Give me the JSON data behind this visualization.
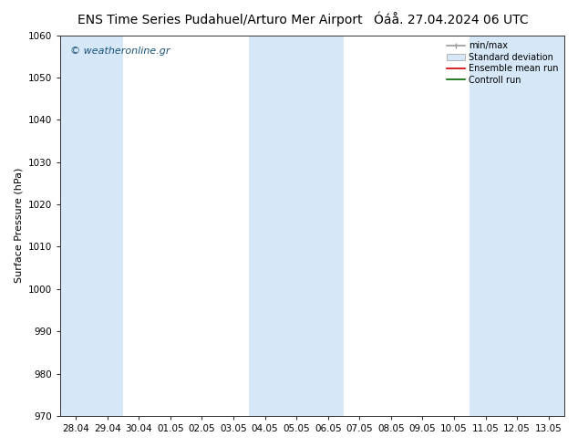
{
  "title_left": "ENS Time Series Pudahuel/Arturo Mer Airport",
  "title_right": "Óáå. 27.04.2024 06 UTC",
  "ylabel": "Surface Pressure (hPa)",
  "ylim": [
    970,
    1060
  ],
  "yticks": [
    970,
    980,
    990,
    1000,
    1010,
    1020,
    1030,
    1040,
    1050,
    1060
  ],
  "xtick_labels": [
    "28.04",
    "29.04",
    "30.04",
    "01.05",
    "02.05",
    "03.05",
    "04.05",
    "05.05",
    "06.05",
    "07.05",
    "08.05",
    "09.05",
    "10.05",
    "11.05",
    "12.05",
    "13.05"
  ],
  "background_color": "#ffffff",
  "plot_bg_color": "#ffffff",
  "band_color": "#d6e8f7",
  "watermark": "© weatheronline.gr",
  "watermark_color": "#1a5276",
  "legend_labels": [
    "min/max",
    "Standard deviation",
    "Ensemble mean run",
    "Controll run"
  ],
  "shaded_indices": [
    0,
    1,
    6,
    7,
    8,
    13,
    14,
    15
  ],
  "title_fontsize": 10,
  "axis_fontsize": 8,
  "tick_fontsize": 7.5,
  "fig_width": 6.34,
  "fig_height": 4.9,
  "dpi": 100
}
